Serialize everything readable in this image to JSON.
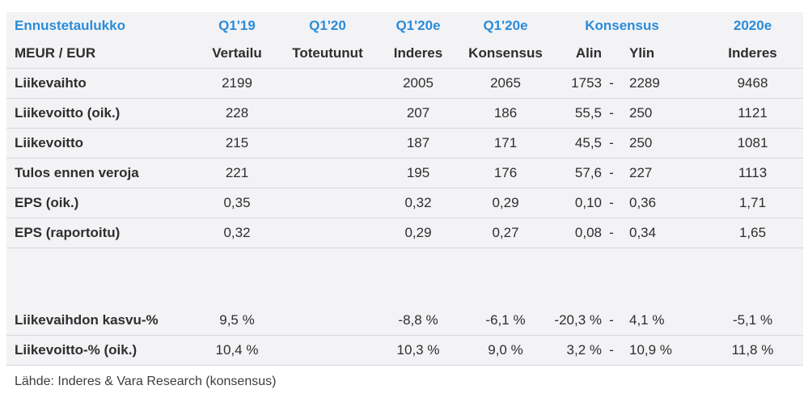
{
  "header": {
    "title": "Ennustetaulukko",
    "q119": "Q1'19",
    "q120": "Q1'20",
    "q120e_ind": "Q1'20e",
    "q120e_kon": "Q1'20e",
    "konsensus": "Konsensus",
    "y2020e": "2020e"
  },
  "subheader": {
    "unit": "MEUR / EUR",
    "vertailu": "Vertailu",
    "toteutunut": "Toteutunut",
    "inderes": "Inderes",
    "konsensus": "Konsensus",
    "alin": "Alin",
    "ylin": "Ylin",
    "inderes2": "Inderes"
  },
  "rows": [
    {
      "label": "Liikevaihto",
      "q119": "2199",
      "q120": "",
      "ind": "2005",
      "kon": "2065",
      "low": "1753",
      "dash": "-",
      "high": "2289",
      "y2020": "9468"
    },
    {
      "label": "Liikevoitto (oik.)",
      "q119": "228",
      "q120": "",
      "ind": "207",
      "kon": "186",
      "low": "55,5",
      "dash": "-",
      "high": "250",
      "y2020": "1121"
    },
    {
      "label": "Liikevoitto",
      "q119": "215",
      "q120": "",
      "ind": "187",
      "kon": "171",
      "low": "45,5",
      "dash": "-",
      "high": "250",
      "y2020": "1081"
    },
    {
      "label": "Tulos ennen veroja",
      "q119": "221",
      "q120": "",
      "ind": "195",
      "kon": "176",
      "low": "57,6",
      "dash": "-",
      "high": "227",
      "y2020": "1113"
    },
    {
      "label": "EPS (oik.)",
      "q119": "0,35",
      "q120": "",
      "ind": "0,32",
      "kon": "0,29",
      "low": "0,10",
      "dash": "-",
      "high": "0,36",
      "y2020": "1,71"
    },
    {
      "label": "EPS (raportoitu)",
      "q119": "0,32",
      "q120": "",
      "ind": "0,29",
      "kon": "0,27",
      "low": "0,08",
      "dash": "-",
      "high": "0,34",
      "y2020": "1,65"
    }
  ],
  "growth_rows": [
    {
      "label": "Liikevaihdon kasvu-%",
      "q119": "9,5 %",
      "q120": "",
      "ind": "-8,8 %",
      "kon": "-6,1 %",
      "low": "-20,3 %",
      "dash": "-",
      "high": "4,1 %",
      "y2020": "-5,1 %"
    },
    {
      "label": "Liikevoitto-% (oik.)",
      "q119": "10,4 %",
      "q120": "",
      "ind": "10,3 %",
      "kon": "9,0 %",
      "low": "3,2 %",
      "dash": "-",
      "high": "10,9 %",
      "y2020": "11,8 %"
    }
  ],
  "source": "Lähde: Inderes & Vara Research  (konsensus)",
  "colors": {
    "accent": "#2a8cd9",
    "background": "#f3f3f6",
    "rule": "#d6d6dc"
  }
}
